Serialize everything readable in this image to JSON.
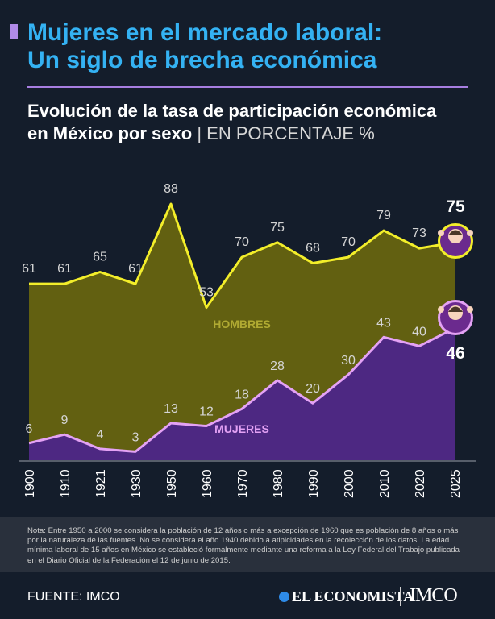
{
  "header": {
    "title_line1": "Mujeres en el mercado laboral:",
    "title_line2": "Un siglo de brecha económica",
    "subtitle_line1": "Evolución de la tasa de participación económica",
    "subtitle_line2": "en México por sexo",
    "subtitle_separator": "|",
    "subtitle_unit": "EN PORCENTAJE %"
  },
  "colors": {
    "background": "#141d2b",
    "men_fill": "#626011",
    "men_line": "#f3ee2a",
    "women_fill": "#4d2882",
    "women_line": "#e4a2f5",
    "title": "#34b2f3",
    "accent": "#a77ee0"
  },
  "chart_data": {
    "type": "area",
    "categories": [
      "1900",
      "1910",
      "1921",
      "1930",
      "1950",
      "1960",
      "1970",
      "1980",
      "1990",
      "2000",
      "2010",
      "2020",
      "2025"
    ],
    "series": [
      {
        "name": "HOMBRES",
        "values": [
          61,
          61,
          65,
          61,
          88,
          53,
          70,
          75,
          68,
          70,
          79,
          73,
          75
        ]
      },
      {
        "name": "MUJERES",
        "values": [
          6,
          9,
          4,
          3,
          13,
          12,
          18,
          28,
          20,
          30,
          43,
          40,
          46
        ]
      }
    ],
    "ylim": [
      0,
      100
    ],
    "grid": false,
    "legend": "inline",
    "highlight_labels": {
      "HOMBRES": "75",
      "MUJERES": "46"
    },
    "icons": {
      "HOMBRES": "shrugging-man-icon",
      "MUJERES": "shrugging-woman-icon"
    }
  },
  "note": "Nota: Entre 1950 a 2000 se considera la población de 12 años o más a excepción de 1960 que es población de 8 años o más por la naturaleza de las fuentes. No se considera el año 1940 debido a atipicidades en la recolección de los datos. La edad mínima laboral de 15 años en México se estableció formalmente mediante una reforma a la Ley Federal del Trabajo publicada en el Diario Oficial de la Federación el 12 de junio de 2015.",
  "footer": {
    "source": "FUENTE: IMCO",
    "brand1": "EL ECONOMISTA",
    "brand2": "IMCO"
  }
}
